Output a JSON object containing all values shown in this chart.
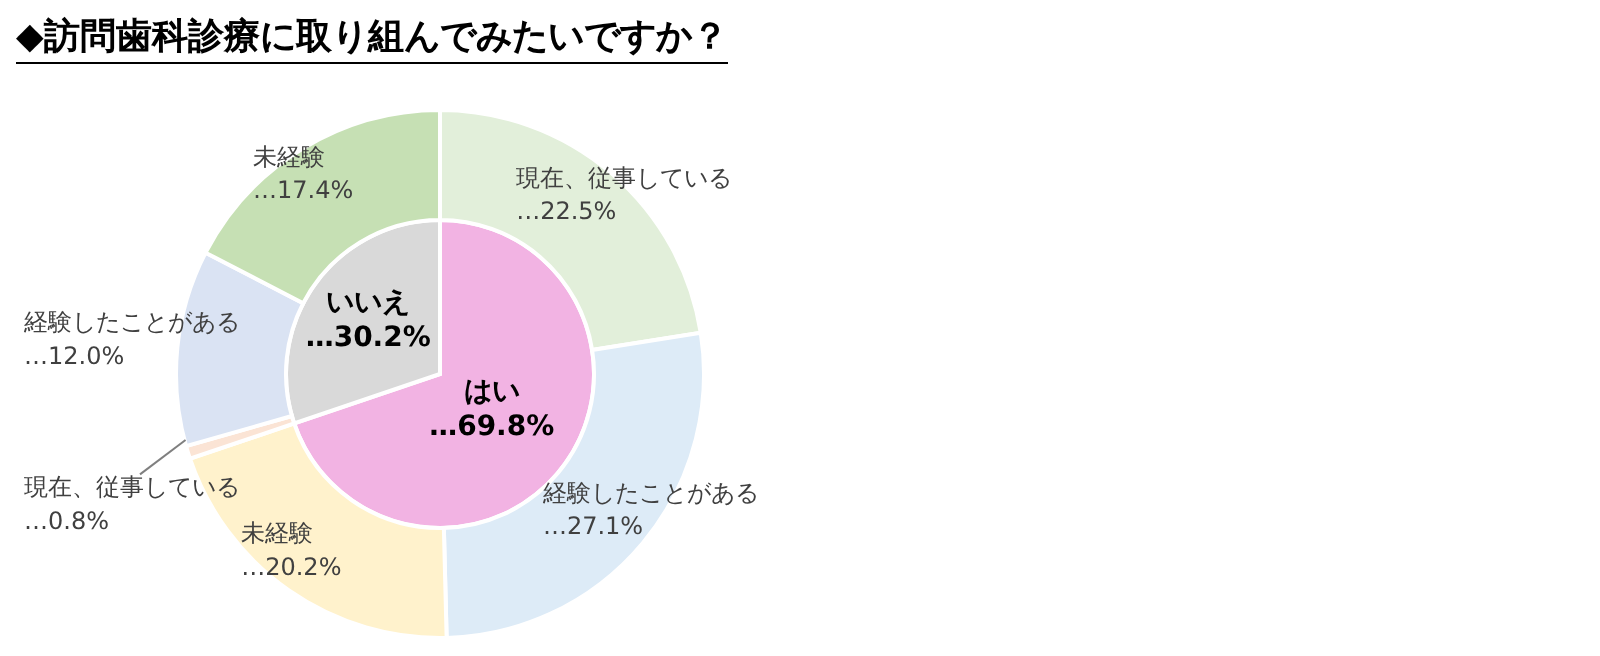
{
  "chart_data": [
    {
      "type": "pie",
      "title": "◆訪問歯科診療に取り組んでみたいですか？",
      "categories": [
        "はい",
        "いいえ"
      ],
      "values": [
        69.8,
        30.2
      ],
      "colors": [
        "#f2b3e3",
        "#d9d9d9"
      ],
      "value_labels": [
        "…69.8%",
        "…30.2%"
      ]
    },
    {
      "type": "donut",
      "categories": [
        "現在、従事している",
        "経験したことがある",
        "未経験",
        "現在、従事している",
        "経験したことがある",
        "未経験"
      ],
      "values": [
        22.5,
        27.1,
        20.2,
        0.8,
        12.0,
        17.4
      ],
      "colors": [
        "#e2efda",
        "#ddebf7",
        "#fff2cc",
        "#fbe4d5",
        "#dae3f3",
        "#c6e0b4"
      ],
      "value_labels": [
        "…22.5%",
        "…27.1%",
        "…20.2%",
        "…0.8%",
        "…12.0%",
        "…17.4%"
      ]
    }
  ]
}
